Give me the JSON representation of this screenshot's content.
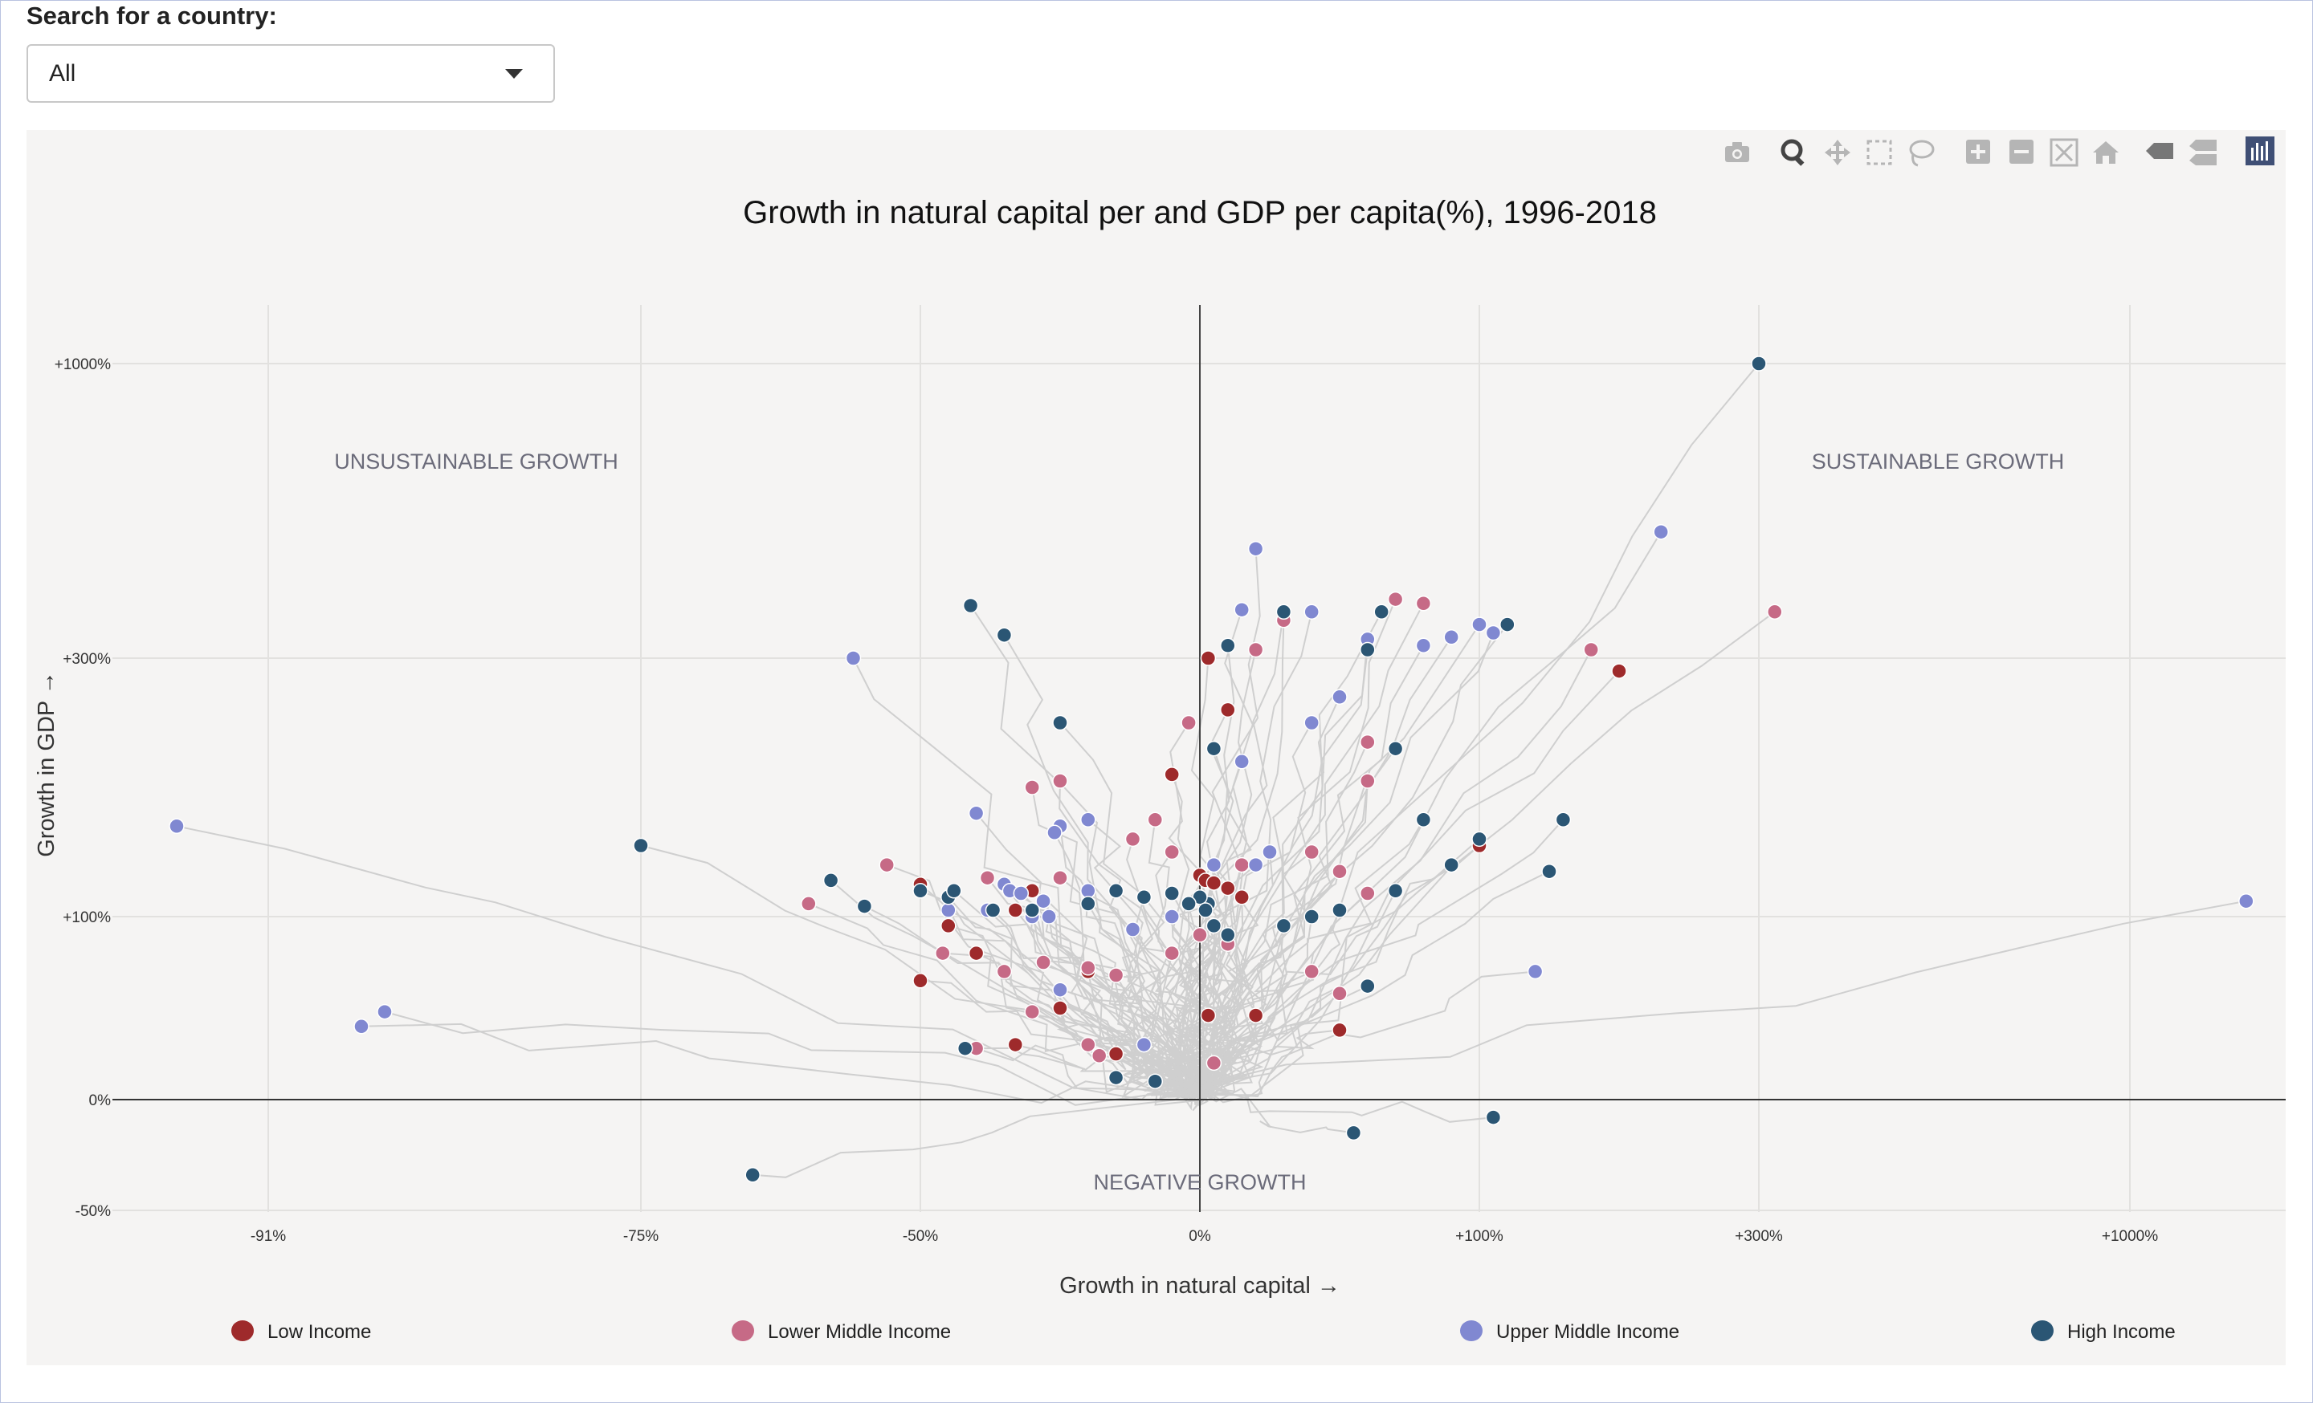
{
  "search": {
    "label": "Search for a country:",
    "value": "All"
  },
  "toolbar": {
    "icons": [
      "camera-icon",
      "zoom-icon",
      "pan-icon",
      "box-select-icon",
      "lasso-select-icon",
      "zoom-in-icon",
      "zoom-out-icon",
      "autoscale-icon",
      "reset-axes-icon",
      "hover-closest-icon",
      "hover-compare-icon",
      "plotly-logo-icon"
    ]
  },
  "colors": {
    "low": "#9e2a2b",
    "lower_middle": "#c66a86",
    "upper_middle": "#8088d1",
    "high": "#2b5674",
    "trail": "#cfcfcf",
    "plot_bg": "#f5f4f3"
  },
  "chart_data": {
    "type": "scatter",
    "title": "Growth in natural capital per and GDP per capita(%), 1996-2018",
    "xlabel": "Growth in natural capital →",
    "ylabel": "Growth in GDP →",
    "x_ticks": [
      "-91%",
      "-75%",
      "-50%",
      "0%",
      "+100%",
      "+300%",
      "+1000%"
    ],
    "y_ticks": [
      "+1000%",
      "+300%",
      "+100%",
      "0%",
      "-50%"
    ],
    "annotations": [
      "UNSUSTAINABLE GROWTH",
      "SUSTAINABLE GROWTH",
      "NEGATIVE GROWTH"
    ],
    "legend": [
      "Low Income",
      "Lower Middle Income",
      "Upper Middle Income",
      "High Income"
    ],
    "legend_position": "bottom",
    "series": [
      {
        "name": "Low Income",
        "points": [
          [
            -5,
            210
          ],
          [
            3,
            300
          ],
          [
            10,
            260
          ],
          [
            100,
            155
          ],
          [
            200,
            290
          ],
          [
            0,
            132
          ],
          [
            2,
            128
          ],
          [
            5,
            126
          ],
          [
            10,
            122
          ],
          [
            15,
            115
          ],
          [
            -45,
            95
          ],
          [
            -40,
            80
          ],
          [
            -50,
            125
          ],
          [
            -25,
            50
          ],
          [
            3,
            46
          ],
          [
            20,
            46
          ],
          [
            50,
            38
          ],
          [
            -50,
            65
          ],
          [
            -15,
            25
          ],
          [
            -33,
            30
          ],
          [
            -20,
            70
          ],
          [
            -30,
            120
          ],
          [
            -33,
            105
          ]
        ]
      },
      {
        "name": "Lower Middle Income",
        "points": [
          [
            70,
            440
          ],
          [
            80,
            430
          ],
          [
            -2,
            250
          ],
          [
            30,
            390
          ],
          [
            20,
            320
          ],
          [
            180,
            320
          ],
          [
            330,
            410
          ],
          [
            60,
            235
          ],
          [
            60,
            205
          ],
          [
            -25,
            205
          ],
          [
            -30,
            200
          ],
          [
            -8,
            175
          ],
          [
            -12,
            160
          ],
          [
            -5,
            150
          ],
          [
            5,
            140
          ],
          [
            15,
            140
          ],
          [
            40,
            150
          ],
          [
            50,
            135
          ],
          [
            60,
            118
          ],
          [
            -38,
            130
          ],
          [
            -53,
            140
          ],
          [
            -60,
            110
          ],
          [
            -46,
            80
          ],
          [
            -35,
            70
          ],
          [
            -28,
            75
          ],
          [
            -20,
            72
          ],
          [
            -15,
            68
          ],
          [
            -5,
            80
          ],
          [
            0,
            90
          ],
          [
            10,
            85
          ],
          [
            40,
            70
          ],
          [
            50,
            58
          ],
          [
            -30,
            48
          ],
          [
            -20,
            30
          ],
          [
            -18,
            24
          ],
          [
            -40,
            28
          ],
          [
            5,
            20
          ],
          [
            -25,
            130
          ]
        ]
      },
      {
        "name": "Upper Middle Income",
        "points": [
          [
            -94,
            170
          ],
          [
            -56,
            300
          ],
          [
            -87,
            40
          ],
          [
            -86,
            48
          ],
          [
            -40,
            180
          ],
          [
            -20,
            175
          ],
          [
            -25,
            170
          ],
          [
            -26,
            165
          ],
          [
            -35,
            125
          ],
          [
            -34,
            120
          ],
          [
            -32,
            118
          ],
          [
            -28,
            112
          ],
          [
            -20,
            120
          ],
          [
            -10,
            115
          ],
          [
            -5,
            100
          ],
          [
            5,
            95
          ],
          [
            10,
            90
          ],
          [
            25,
            150
          ],
          [
            20,
            140
          ],
          [
            15,
            220
          ],
          [
            40,
            250
          ],
          [
            50,
            270
          ],
          [
            80,
            330
          ],
          [
            90,
            350
          ],
          [
            110,
            360
          ],
          [
            230,
            600
          ],
          [
            100,
            380
          ],
          [
            20,
            560
          ],
          [
            15,
            415
          ],
          [
            40,
            410
          ],
          [
            60,
            345
          ],
          [
            -30,
            100
          ],
          [
            -25,
            60
          ],
          [
            -10,
            30
          ],
          [
            140,
            70
          ],
          [
            5,
            140
          ],
          [
            -45,
            105
          ],
          [
            -38,
            105
          ],
          [
            -27,
            100
          ],
          [
            -12,
            93
          ],
          [
            -30,
            105
          ],
          [
            1970,
            112
          ]
        ]
      },
      {
        "name": "High Income",
        "points": [
          [
            -75,
            155
          ],
          [
            -41,
            425
          ],
          [
            -35,
            355
          ],
          [
            -25,
            250
          ],
          [
            5,
            230
          ],
          [
            10,
            330
          ],
          [
            30,
            410
          ],
          [
            120,
            380
          ],
          [
            60,
            320
          ],
          [
            70,
            230
          ],
          [
            80,
            175
          ],
          [
            100,
            160
          ],
          [
            90,
            140
          ],
          [
            70,
            120
          ],
          [
            50,
            105
          ],
          [
            40,
            100
          ],
          [
            30,
            95
          ],
          [
            10,
            90
          ],
          [
            5,
            95
          ],
          [
            3,
            110
          ],
          [
            -5,
            118
          ],
          [
            -10,
            115
          ],
          [
            -20,
            110
          ],
          [
            -15,
            120
          ],
          [
            -30,
            105
          ],
          [
            -37,
            105
          ],
          [
            -45,
            115
          ],
          [
            -50,
            120
          ],
          [
            -55,
            108
          ],
          [
            60,
            62
          ],
          [
            150,
            135
          ],
          [
            160,
            175
          ],
          [
            300,
            1000
          ],
          [
            0,
            115
          ],
          [
            -2,
            110
          ],
          [
            2,
            105
          ],
          [
            -42,
            28
          ],
          [
            -8,
            10
          ],
          [
            -15,
            12
          ],
          [
            55,
            -15
          ],
          [
            110,
            -8
          ],
          [
            -65,
            -34
          ],
          [
            -44,
            120
          ],
          [
            -58,
            128
          ],
          [
            65,
            410
          ]
        ]
      }
    ]
  }
}
